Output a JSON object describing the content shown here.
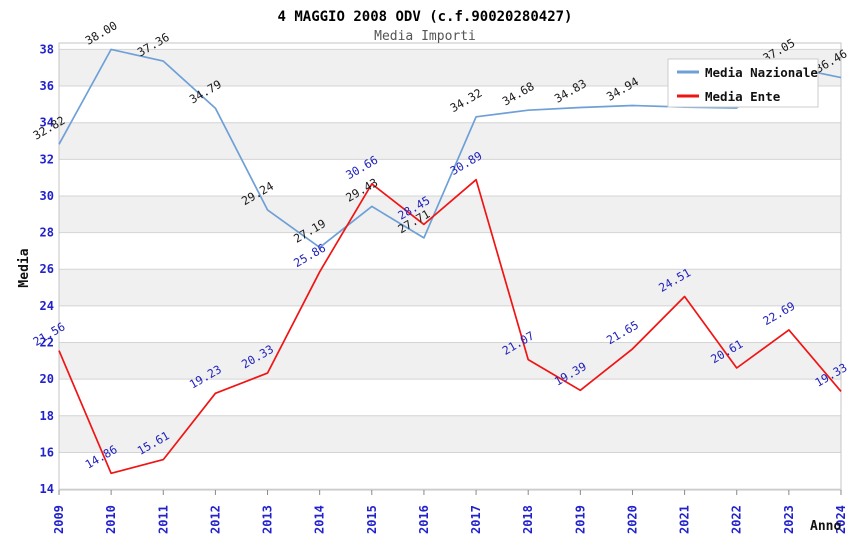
{
  "chart_data": {
    "type": "line",
    "title": "4 MAGGIO 2008 ODV (c.f.90020280427)",
    "subtitle": "Media Importi",
    "xlabel": "Anno",
    "ylabel": "Media",
    "x": [
      "2009",
      "2010",
      "2011",
      "2012",
      "2013",
      "2014",
      "2015",
      "2016",
      "2017",
      "2018",
      "2019",
      "2020",
      "2021",
      "2022",
      "2023",
      "2024"
    ],
    "ylim": [
      13.95,
      38.35
    ],
    "yticks": [
      14,
      16,
      18,
      20,
      22,
      24,
      26,
      28,
      30,
      32,
      34,
      36,
      38
    ],
    "grid": true,
    "legend_position": "top-right",
    "series": [
      {
        "name": "Media Nazionale",
        "color": "#6ea0d7",
        "label_color": "#1a1a1a",
        "values": [
          32.82,
          38.0,
          37.36,
          34.79,
          29.24,
          27.19,
          29.43,
          27.71,
          34.32,
          34.68,
          34.83,
          34.94,
          34.85,
          34.8,
          37.05,
          36.46
        ],
        "point_labels": [
          "32.82",
          "38.00",
          "37.36",
          "34.79",
          "29.24",
          "27.19",
          "29.43",
          "27.71",
          "34.32",
          "34.68",
          "34.83",
          "34.94",
          "",
          "",
          "37.05",
          "36.46"
        ]
      },
      {
        "name": "Media Ente",
        "color": "#f01414",
        "label_color": "#2222bb",
        "values": [
          21.56,
          14.86,
          15.61,
          19.23,
          20.33,
          25.86,
          30.66,
          28.45,
          30.89,
          21.07,
          19.39,
          21.65,
          24.51,
          20.61,
          22.69,
          19.33
        ],
        "point_labels": [
          "21.56",
          "14.86",
          "15.61",
          "19.23",
          "20.33",
          "25.86",
          "30.66",
          "28.45",
          "30.89",
          "21.07",
          "19.39",
          "21.65",
          "24.51",
          "20.61",
          "22.69",
          "19.33"
        ]
      }
    ]
  },
  "colors": {
    "band_gray": "#f0f0f0",
    "band_white": "#ffffff",
    "grid": "#d4d4d4",
    "frame": "#c4c4c4",
    "axis_tick": "#888888",
    "tick_label_blue": "#2222cc",
    "title_text": "#111111",
    "subtitle_text": "#555555"
  }
}
